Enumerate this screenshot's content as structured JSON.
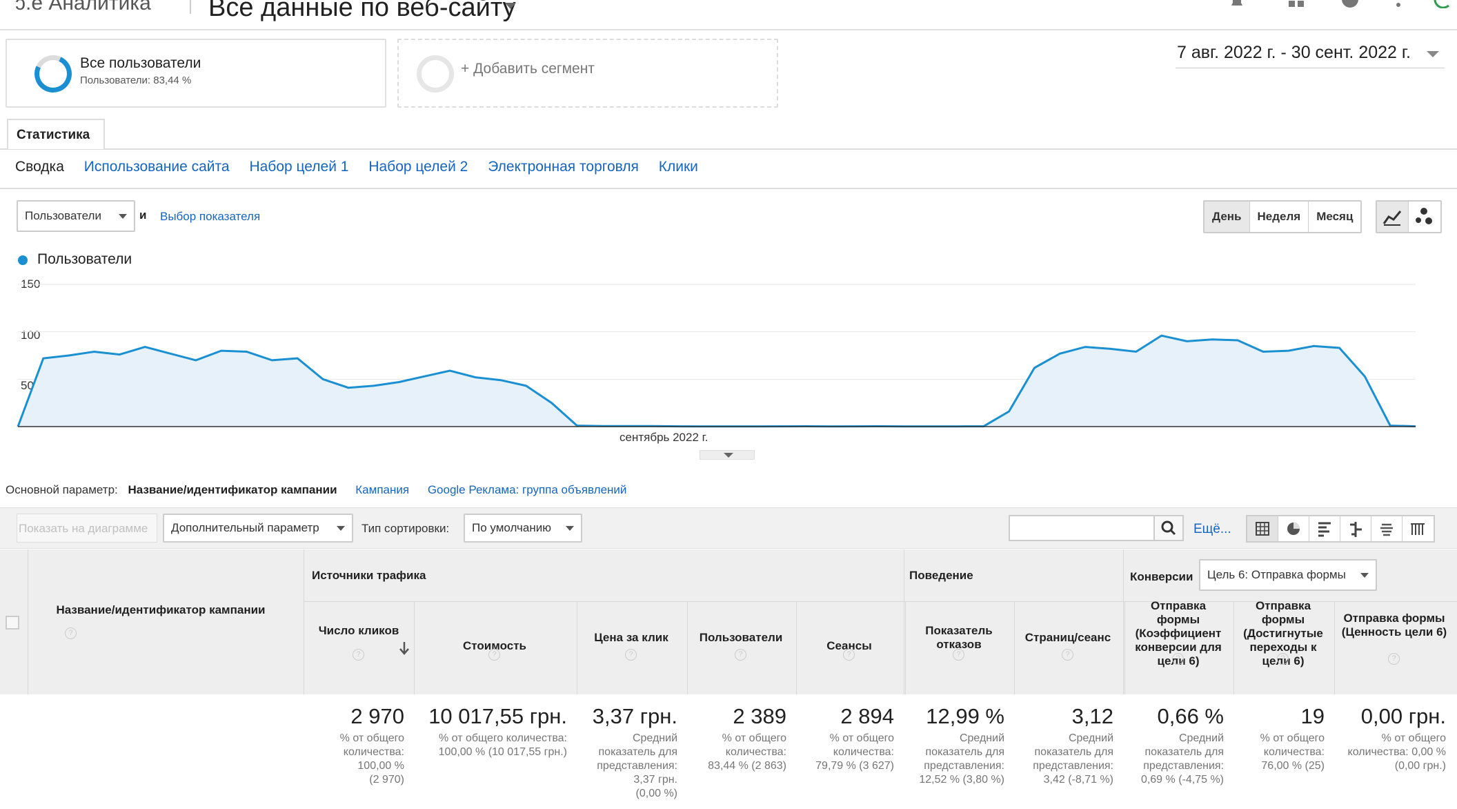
{
  "header": {
    "logo_text": "ɔ.e Аналитика",
    "property_title": "Все данные по веб-сайту"
  },
  "segments": {
    "active_name": "Все пользователи",
    "active_sub": "Пользователи: 83,44 %",
    "add_label": "+ Добавить сегмент"
  },
  "date_range": "7 авг. 2022 г. - 30 сент. 2022 г.",
  "tabs": {
    "main": "Статистика",
    "sub": [
      "Сводка",
      "Использование сайта",
      "Набор целей 1",
      "Набор целей 2",
      "Электронная торговля",
      "Клики"
    ]
  },
  "chart_controls": {
    "metric_select": "Пользователи",
    "and_label": "и",
    "choose_metric": "Выбор показателя",
    "period_buttons": [
      "День",
      "Неделя",
      "Месяц"
    ],
    "active_period": "День"
  },
  "chart_data": {
    "type": "area",
    "series": [
      {
        "name": "Пользователи",
        "color": "#1a8fd1",
        "values": [
          0,
          72,
          75,
          79,
          76,
          84,
          77,
          70,
          80,
          79,
          70,
          72,
          50,
          41,
          43,
          47,
          53,
          59,
          52,
          49,
          43,
          25,
          1,
          0.6,
          0.5,
          0.5,
          0.3,
          0.2,
          0.2,
          0.2,
          0.3,
          0.4,
          0.2,
          0.3,
          0.4,
          0.2,
          0.2,
          0.2,
          0.3,
          16,
          62,
          77,
          84,
          82,
          79,
          96,
          90,
          92,
          91,
          79,
          80,
          85,
          83,
          53,
          1,
          0.3
        ]
      }
    ],
    "y_ticks": [
      "150",
      "100",
      "50"
    ],
    "ylim": [
      0,
      150
    ],
    "x_label": "сентябрь 2022 г.",
    "grid": true
  },
  "dimension_row": {
    "label": "Основной параметр:",
    "active": "Название/идентификатор кампании",
    "links": [
      "Кампания",
      "Google Реклама: группа объявлений"
    ]
  },
  "table_toolbar": {
    "plot_button": "Показать на диаграмме",
    "secondary_dim": "Дополнительный параметр",
    "sort_label": "Тип сортировки:",
    "sort_value": "По умолчанию",
    "more": "Ещё..."
  },
  "table": {
    "groups": {
      "traffic": "Источники трафика",
      "behavior": "Поведение",
      "conversions": "Конверсии",
      "goal_select": "Цель 6: Отправка формы"
    },
    "dim_header": "Название/идентификатор кампании",
    "columns": [
      {
        "header": "Число кликов",
        "value": "2 970",
        "sub": [
          "% от общего",
          "количества:",
          "100,00 %",
          "(2 970)"
        ]
      },
      {
        "header": "Стоимость",
        "value": "10 017,55 грн.",
        "sub": [
          "% от общего количества:",
          "100,00 % (10 017,55 грн.)"
        ]
      },
      {
        "header": "Цена за клик",
        "value": "3,37 грн.",
        "sub": [
          "Средний",
          "показатель для",
          "представления:",
          "3,37 грн.",
          "(0,00 %)"
        ]
      },
      {
        "header": "Пользователи",
        "value": "2 389",
        "sub": [
          "% от общего",
          "количества:",
          "83,44 % (2 863)"
        ]
      },
      {
        "header": "Сеансы",
        "value": "2 894",
        "sub": [
          "% от общего",
          "количества:",
          "79,79 % (3 627)"
        ]
      },
      {
        "header": "Показатель отказов",
        "value": "12,99 %",
        "sub": [
          "Средний",
          "показатель для",
          "представления:",
          "12,52 % (3,80 %)"
        ]
      },
      {
        "header": "Страниц/сеанс",
        "value": "3,12",
        "sub": [
          "Средний",
          "показатель для",
          "представления:",
          "3,42 (-8,71 %)"
        ]
      },
      {
        "header": "Отправка формы (Коэффициент конверсии для цели 6)",
        "value": "0,66 %",
        "sub": [
          "Средний",
          "показатель для",
          "представления:",
          "0,69 % (-4,75 %)"
        ]
      },
      {
        "header": "Отправка формы (Достигнутые переходы к цели 6)",
        "value": "19",
        "sub": [
          "% от общего",
          "количества:",
          "76,00 % (25)"
        ]
      },
      {
        "header": "Отправка формы (Ценность цели 6)",
        "value": "0,00 грн.",
        "sub": [
          "% от общего",
          "количества: 0,00 %",
          "(0,00 грн.)"
        ]
      }
    ]
  }
}
